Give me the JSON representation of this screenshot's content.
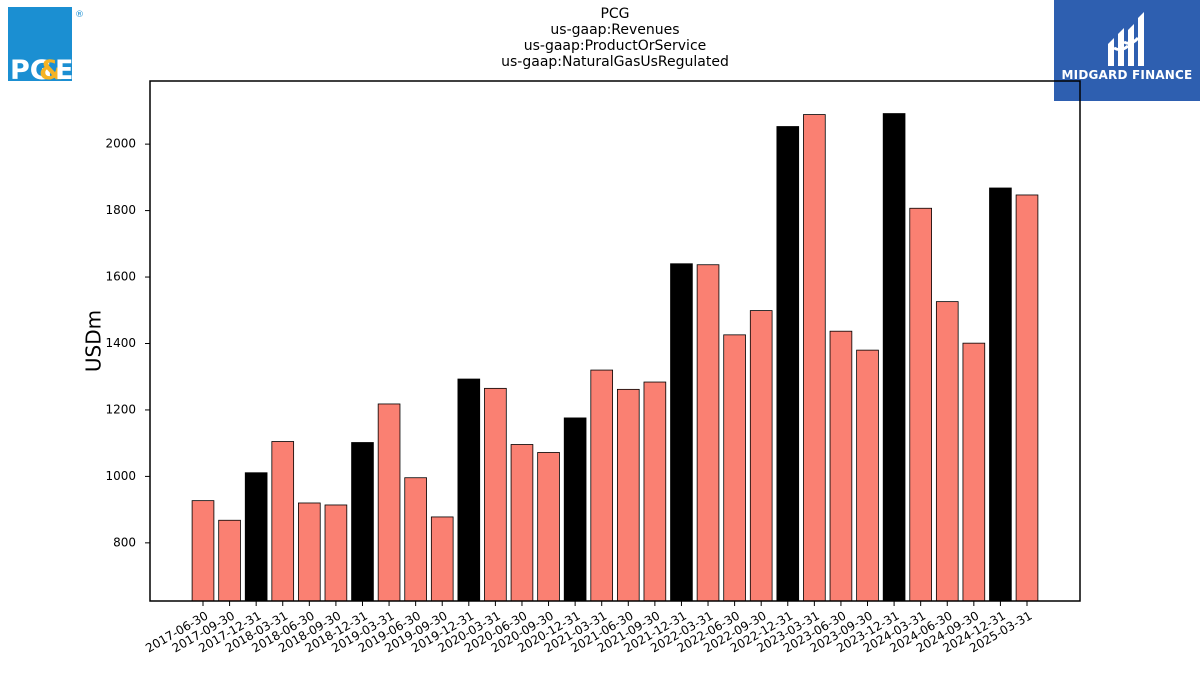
{
  "header": {
    "title_lines": [
      "PCG",
      "us-gaap:Revenues",
      "us-gaap:ProductOrService",
      "us-gaap:NaturalGasUsRegulated"
    ]
  },
  "logos": {
    "left": {
      "text_pg": "PG",
      "text_amp": "&",
      "text_e": "E",
      "registered": "®",
      "icon": "pge-logo"
    },
    "right": {
      "text": "MIDGARD FINANCE",
      "icon": "midgard-logo"
    }
  },
  "colors": {
    "quarter_bar": "#fa8072",
    "year_end_bar": "#000000",
    "midgard_bg": "#2e5fb0",
    "pge_blue": "#1b8fd2",
    "pge_yellow": "#f5b324"
  },
  "chart_data": {
    "type": "bar",
    "title": "PCG\nus-gaap:Revenues\nus-gaap:ProductOrService\nus-gaap:NaturalGasUsRegulated",
    "xlabel": "",
    "ylabel": "USDm",
    "ylim": [
      625,
      2190
    ],
    "yticks": [
      800,
      1000,
      1200,
      1400,
      1600,
      1800,
      2000
    ],
    "grid": false,
    "categories": [
      "2017-06-30",
      "2017-09-30",
      "2017-12-31",
      "2018-03-31",
      "2018-06-30",
      "2018-09-30",
      "2018-12-31",
      "2019-03-31",
      "2019-06-30",
      "2019-09-30",
      "2019-12-31",
      "2020-03-31",
      "2020-06-30",
      "2020-09-30",
      "2020-12-31",
      "2021-03-31",
      "2021-06-30",
      "2021-09-30",
      "2021-12-31",
      "2022-03-31",
      "2022-06-30",
      "2022-09-30",
      "2022-12-31",
      "2023-03-31",
      "2023-06-30",
      "2023-09-30",
      "2023-12-31",
      "2024-03-31",
      "2024-06-30",
      "2024-09-30",
      "2024-12-31",
      "2025-03-31"
    ],
    "values": [
      927,
      868,
      1011,
      1105,
      920,
      914,
      1102,
      1218,
      996,
      878,
      1293,
      1265,
      1096,
      1072,
      1176,
      1320,
      1262,
      1284,
      1640,
      1637,
      1426,
      1499,
      2053,
      2089,
      1437,
      1380,
      2092,
      1807,
      1526,
      1401,
      1868,
      1847
    ],
    "year_end": [
      false,
      false,
      true,
      false,
      false,
      false,
      true,
      false,
      false,
      false,
      true,
      false,
      false,
      false,
      true,
      false,
      false,
      false,
      true,
      false,
      false,
      false,
      true,
      false,
      false,
      false,
      true,
      false,
      false,
      false,
      true,
      false
    ]
  }
}
